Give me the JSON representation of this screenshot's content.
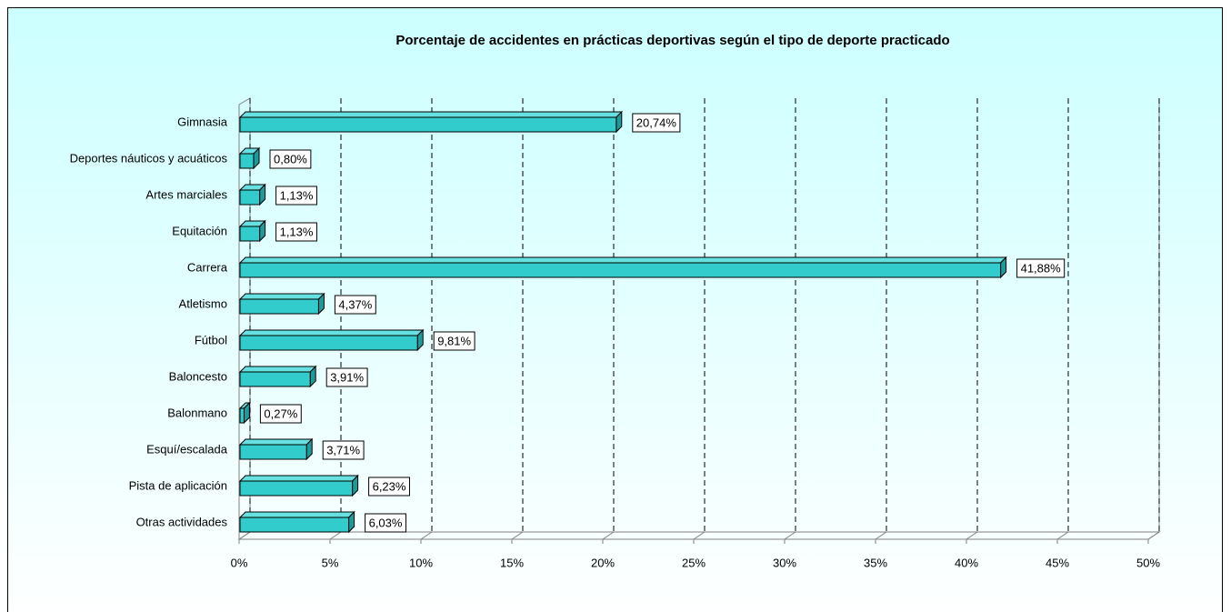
{
  "chart_data": {
    "type": "bar",
    "orientation": "horizontal",
    "title": "Porcentaje de accidentes en prácticas deportivas según el tipo de deporte practicado",
    "categories": [
      "Gimnasia",
      "Deportes náuticos y acuáticos",
      "Artes marciales",
      "Equitación",
      "Carrera",
      "Atletismo",
      "Fútbol",
      "Baloncesto",
      "Balonmano",
      "Esquí/escalada",
      "Pista de aplicación",
      "Otras actividades"
    ],
    "values": [
      20.74,
      0.8,
      1.13,
      1.13,
      41.88,
      4.37,
      9.81,
      3.91,
      0.27,
      3.71,
      6.23,
      6.03
    ],
    "value_labels": [
      "20,74%",
      "0,80%",
      "1,13%",
      "1,13%",
      "41,88%",
      "4,37%",
      "9,81%",
      "3,91%",
      "0,27%",
      "3,71%",
      "6,23%",
      "6,03%"
    ],
    "color": "#33cccc",
    "xlim": [
      0,
      50
    ],
    "xticks": [
      {
        "value": 0,
        "label": "0%"
      },
      {
        "value": 5,
        "label": "5%"
      },
      {
        "value": 10,
        "label": "10%"
      },
      {
        "value": 15,
        "label": "15%"
      },
      {
        "value": 20,
        "label": "20%"
      },
      {
        "value": 25,
        "label": "25%"
      },
      {
        "value": 30,
        "label": "30%"
      },
      {
        "value": 35,
        "label": "35%"
      },
      {
        "value": 40,
        "label": "40%"
      },
      {
        "value": 45,
        "label": "45%"
      },
      {
        "value": 50,
        "label": "50%"
      }
    ],
    "grid": true
  }
}
